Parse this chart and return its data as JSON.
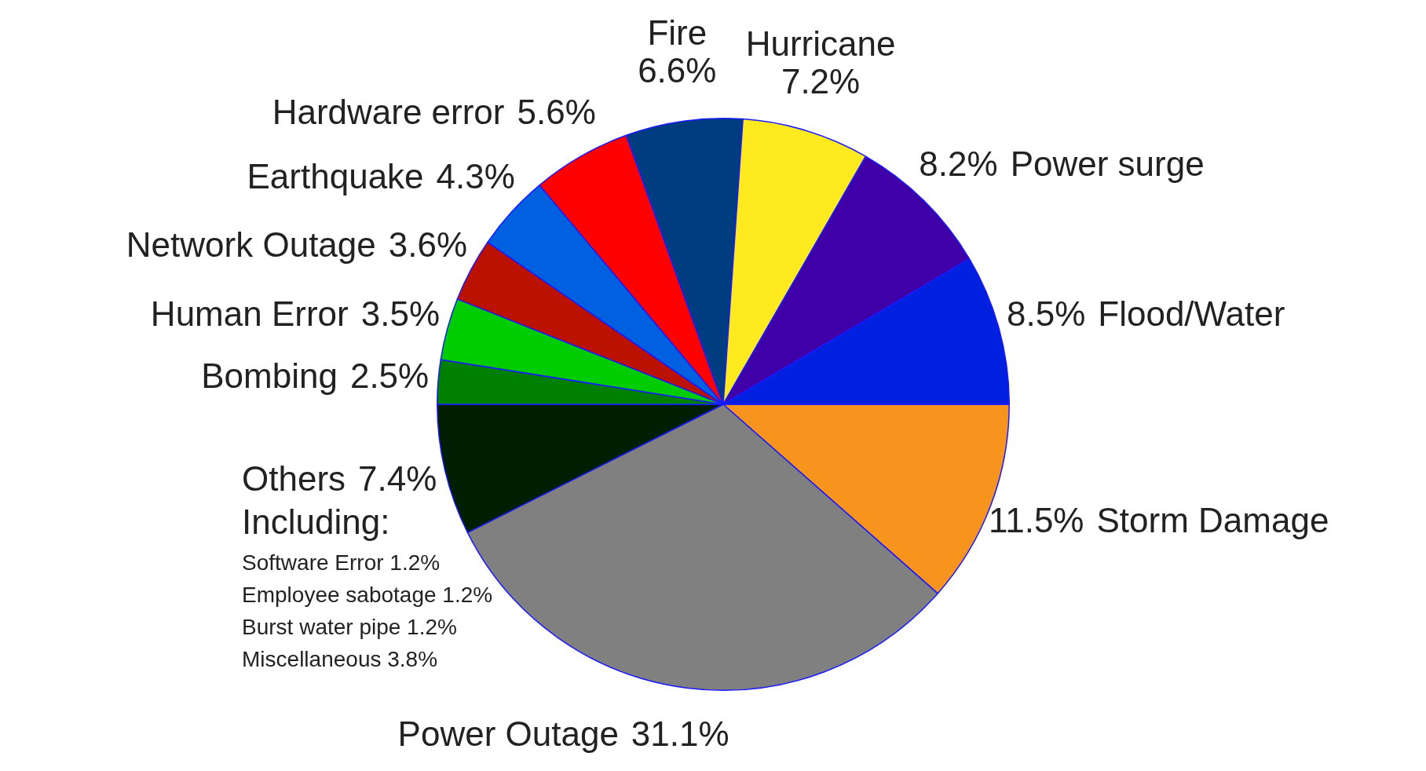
{
  "chart_data": {
    "type": "pie",
    "categories": [
      "Storm Damage",
      "Power Outage",
      "Others",
      "Bombing",
      "Human Error",
      "Network Outage",
      "Earthquake",
      "Hardware error",
      "Fire",
      "Hurricane",
      "Power surge",
      "Flood/Water"
    ],
    "values": [
      11.5,
      31.1,
      7.4,
      2.5,
      3.5,
      3.6,
      4.3,
      5.6,
      6.6,
      7.2,
      8.2,
      8.5
    ],
    "value_labels": [
      "11.5%",
      "31.1%",
      "7.4%",
      "2.5%",
      "3.5%",
      "3.6%",
      "4.3%",
      "5.6%",
      "6.6%",
      "7.2%",
      "8.2%",
      "8.5%"
    ],
    "colors": [
      "#f7941d",
      "#808080",
      "#001e00",
      "#008000",
      "#00cc00",
      "#bb1100",
      "#0060e0",
      "#ff0000",
      "#003c80",
      "#ffea20",
      "#4000a8",
      "#0020e0"
    ],
    "annotations": [
      "Including:",
      "Software Error 1.2%",
      "Employee sabotage 1.2%",
      "Burst water pipe 1.2%",
      "Miscellaneous 3.8%"
    ],
    "legend": false
  }
}
